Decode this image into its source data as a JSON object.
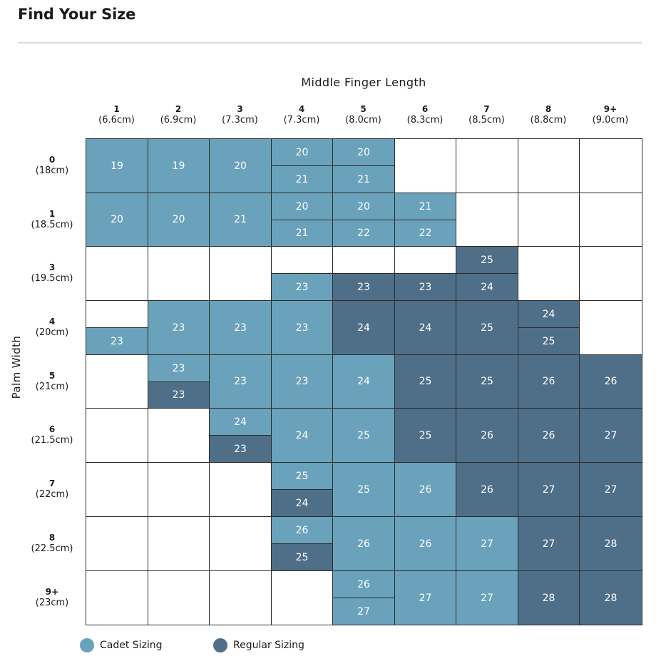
{
  "title": "Find Your Size",
  "x_axis_title": "Middle Finger Length",
  "y_axis_title": "Palm Width",
  "colors": {
    "cadet": "#6aa2bb",
    "regular": "#4f6f89"
  },
  "columns": [
    {
      "label": "1",
      "measure": "(6.6cm)"
    },
    {
      "label": "2",
      "measure": "(6.9cm)"
    },
    {
      "label": "3",
      "measure": "(7.3cm)"
    },
    {
      "label": "4",
      "measure": "(7.3cm)"
    },
    {
      "label": "5",
      "measure": "(8.0cm)"
    },
    {
      "label": "6",
      "measure": "(8.3cm)"
    },
    {
      "label": "7",
      "measure": "(8.5cm)"
    },
    {
      "label": "8",
      "measure": "(8.8cm)"
    },
    {
      "label": "9+",
      "measure": "(9.0cm)"
    }
  ],
  "rows": [
    {
      "label": "0",
      "measure": "(18cm)",
      "cells": [
        [
          {
            "v": "19",
            "t": "cadet"
          }
        ],
        [
          {
            "v": "19",
            "t": "cadet"
          }
        ],
        [
          {
            "v": "20",
            "t": "cadet"
          }
        ],
        [
          {
            "v": "20",
            "t": "cadet"
          },
          {
            "v": "21",
            "t": "cadet"
          }
        ],
        [
          {
            "v": "20",
            "t": "cadet"
          },
          {
            "v": "21",
            "t": "cadet"
          }
        ],
        [],
        [],
        [],
        []
      ]
    },
    {
      "label": "1",
      "measure": "(18.5cm)",
      "cells": [
        [
          {
            "v": "20",
            "t": "cadet"
          }
        ],
        [
          {
            "v": "20",
            "t": "cadet"
          }
        ],
        [
          {
            "v": "21",
            "t": "cadet"
          }
        ],
        [
          {
            "v": "20",
            "t": "cadet"
          },
          {
            "v": "21",
            "t": "cadet"
          }
        ],
        [
          {
            "v": "20",
            "t": "cadet"
          },
          {
            "v": "22",
            "t": "cadet"
          }
        ],
        [
          {
            "v": "21",
            "t": "cadet"
          },
          {
            "v": "22",
            "t": "cadet"
          }
        ],
        [],
        [],
        []
      ]
    },
    {
      "label": "3",
      "measure": "(19.5cm)",
      "cells": [
        [],
        [],
        [],
        [
          null,
          {
            "v": "23",
            "t": "cadet"
          }
        ],
        [
          null,
          {
            "v": "23",
            "t": "regular"
          }
        ],
        [
          null,
          {
            "v": "23",
            "t": "regular"
          }
        ],
        [
          {
            "v": "25",
            "t": "regular"
          },
          {
            "v": "24",
            "t": "regular"
          }
        ],
        [],
        []
      ]
    },
    {
      "label": "4",
      "measure": "(20cm)",
      "cells": [
        [
          null,
          {
            "v": "23",
            "t": "cadet"
          }
        ],
        [
          {
            "v": "23",
            "t": "cadet"
          }
        ],
        [
          {
            "v": "23",
            "t": "cadet"
          }
        ],
        [
          {
            "v": "23",
            "t": "cadet"
          }
        ],
        [
          {
            "v": "24",
            "t": "regular"
          }
        ],
        [
          {
            "v": "24",
            "t": "regular"
          }
        ],
        [
          {
            "v": "25",
            "t": "regular"
          }
        ],
        [
          {
            "v": "24",
            "t": "regular"
          },
          {
            "v": "25",
            "t": "regular"
          }
        ],
        []
      ]
    },
    {
      "label": "5",
      "measure": "(21cm)",
      "cells": [
        [],
        [
          {
            "v": "23",
            "t": "cadet"
          },
          {
            "v": "23",
            "t": "regular"
          }
        ],
        [
          {
            "v": "23",
            "t": "cadet"
          }
        ],
        [
          {
            "v": "23",
            "t": "cadet"
          }
        ],
        [
          {
            "v": "24",
            "t": "cadet"
          }
        ],
        [
          {
            "v": "25",
            "t": "regular"
          }
        ],
        [
          {
            "v": "25",
            "t": "regular"
          }
        ],
        [
          {
            "v": "26",
            "t": "regular"
          }
        ],
        [
          {
            "v": "26",
            "t": "regular"
          }
        ]
      ]
    },
    {
      "label": "6",
      "measure": "(21.5cm)",
      "cells": [
        [],
        [],
        [
          {
            "v": "24",
            "t": "cadet"
          },
          {
            "v": "23",
            "t": "regular"
          }
        ],
        [
          {
            "v": "24",
            "t": "cadet"
          }
        ],
        [
          {
            "v": "25",
            "t": "cadet"
          }
        ],
        [
          {
            "v": "25",
            "t": "regular"
          }
        ],
        [
          {
            "v": "26",
            "t": "regular"
          }
        ],
        [
          {
            "v": "26",
            "t": "regular"
          }
        ],
        [
          {
            "v": "27",
            "t": "regular"
          }
        ]
      ]
    },
    {
      "label": "7",
      "measure": "(22cm)",
      "cells": [
        [],
        [],
        [],
        [
          {
            "v": "25",
            "t": "cadet"
          },
          {
            "v": "24",
            "t": "regular"
          }
        ],
        [
          {
            "v": "25",
            "t": "cadet"
          }
        ],
        [
          {
            "v": "26",
            "t": "cadet"
          }
        ],
        [
          {
            "v": "26",
            "t": "regular"
          }
        ],
        [
          {
            "v": "27",
            "t": "regular"
          }
        ],
        [
          {
            "v": "27",
            "t": "regular"
          }
        ]
      ]
    },
    {
      "label": "8",
      "measure": "(22.5cm)",
      "cells": [
        [],
        [],
        [],
        [
          {
            "v": "26",
            "t": "cadet"
          },
          {
            "v": "25",
            "t": "regular"
          }
        ],
        [
          {
            "v": "26",
            "t": "cadet"
          }
        ],
        [
          {
            "v": "26",
            "t": "cadet"
          }
        ],
        [
          {
            "v": "27",
            "t": "cadet"
          }
        ],
        [
          {
            "v": "27",
            "t": "regular"
          }
        ],
        [
          {
            "v": "28",
            "t": "regular"
          }
        ]
      ]
    },
    {
      "label": "9+",
      "measure": "(23cm)",
      "cells": [
        [],
        [],
        [],
        [],
        [
          {
            "v": "26",
            "t": "cadet"
          },
          {
            "v": "27",
            "t": "cadet"
          }
        ],
        [
          {
            "v": "27",
            "t": "cadet"
          }
        ],
        [
          {
            "v": "27",
            "t": "cadet"
          }
        ],
        [
          {
            "v": "28",
            "t": "regular"
          }
        ],
        [
          {
            "v": "28",
            "t": "regular"
          }
        ]
      ]
    }
  ],
  "legend": [
    {
      "label": "Cadet Sizing",
      "type": "cadet"
    },
    {
      "label": "Regular Sizing",
      "type": "regular"
    }
  ]
}
